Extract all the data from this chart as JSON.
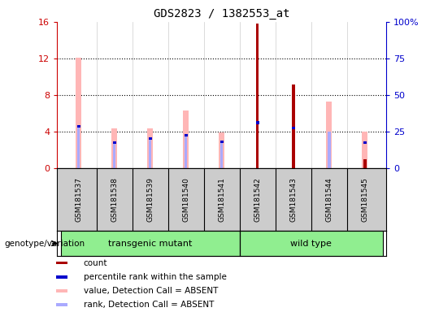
{
  "title": "GDS2823 / 1382553_at",
  "samples": [
    "GSM181537",
    "GSM181538",
    "GSM181539",
    "GSM181540",
    "GSM181541",
    "GSM181542",
    "GSM181543",
    "GSM181544",
    "GSM181545"
  ],
  "count": [
    0,
    0,
    0,
    0,
    0,
    15.8,
    9.2,
    0,
    1.0
  ],
  "percentile_rank": [
    4.6,
    2.8,
    3.3,
    3.6,
    2.9,
    5.0,
    4.4,
    0,
    2.8
  ],
  "value_absent": [
    12.1,
    4.4,
    4.4,
    6.3,
    3.9,
    0,
    0,
    7.3,
    4.0
  ],
  "rank_absent": [
    4.6,
    2.8,
    3.3,
    3.6,
    2.9,
    0,
    0,
    4.0,
    0
  ],
  "groups": [
    {
      "label": "transgenic mutant",
      "start": 0,
      "end": 4,
      "color": "#90EE90"
    },
    {
      "label": "wild type",
      "start": 5,
      "end": 8,
      "color": "#90EE90"
    }
  ],
  "ylim_left": [
    0,
    16
  ],
  "ylim_right": [
    0,
    100
  ],
  "yticks_left": [
    0,
    4,
    8,
    12,
    16
  ],
  "yticks_right": [
    0,
    25,
    50,
    75,
    100
  ],
  "yticklabels_right": [
    "0",
    "25",
    "50",
    "75",
    "100%"
  ],
  "color_count": "#AA0000",
  "color_percentile": "#0000CC",
  "color_value_absent": "#FFB6B6",
  "color_rank_absent": "#AAAAFF",
  "thin_bar_width": 0.08,
  "medium_bar_width": 0.15,
  "grid_color": "black",
  "left_yaxis_color": "#CC0000",
  "right_yaxis_color": "#0000CC",
  "genotype_label": "genotype/variation",
  "legend_items": [
    {
      "label": "count",
      "color": "#AA0000"
    },
    {
      "label": "percentile rank within the sample",
      "color": "#0000CC"
    },
    {
      "label": "value, Detection Call = ABSENT",
      "color": "#FFB6B6"
    },
    {
      "label": "rank, Detection Call = ABSENT",
      "color": "#AAAAFF"
    }
  ]
}
